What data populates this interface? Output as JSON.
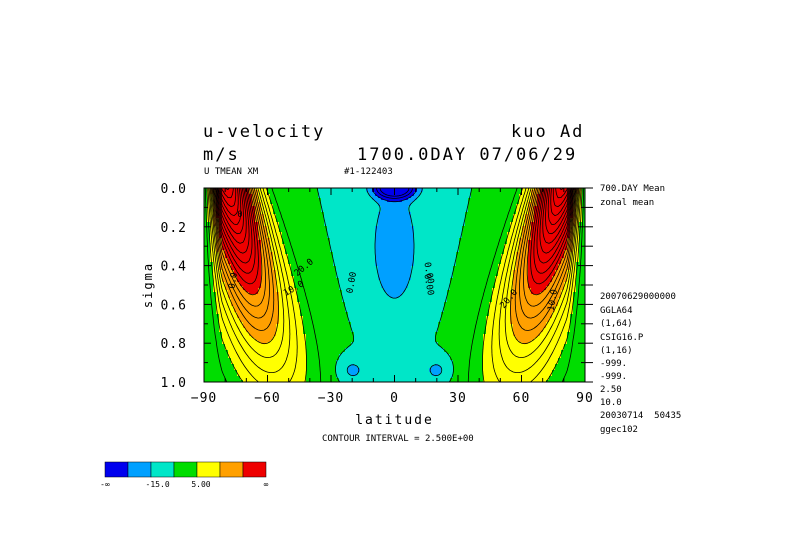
{
  "header": {
    "variable": "u-velocity",
    "units": "m/s",
    "experiment": "kuo Ad",
    "time": "1700.0DAY 07/06/29",
    "var_code": "U TMEAN XM",
    "run_id": "#1-122403"
  },
  "side_info": [
    "700.DAY Mean",
    "zonal mean",
    "20070629000000",
    "GGLA64",
    "(1,64)",
    "CSIG16.P",
    "(1,16)",
    "-999.",
    "-999.",
    "2.50",
    "10.0",
    "20030714  50435",
    "ggec102"
  ],
  "footer": {
    "contour_interval": "CONTOUR INTERVAL = 2.500E+00"
  },
  "colorbar": {
    "colors": [
      "#0000ee",
      "#00a0ff",
      "#00e6c8",
      "#00dd00",
      "#ffff00",
      "#ffa000",
      "#ee0000"
    ],
    "labels": [
      "-∞",
      "-15.0",
      "5.00",
      "∞"
    ]
  },
  "chart_data": {
    "type": "contour",
    "title": "u-velocity",
    "xlabel": "latitude",
    "ylabel": "sigma",
    "xlim": [
      -90,
      90
    ],
    "ylim": [
      1.0,
      0.0
    ],
    "x_ticks": [
      "−90",
      "−60",
      "−30",
      "0",
      "30",
      "60",
      "90"
    ],
    "y_ticks": [
      "0.0",
      "0.2",
      "0.4",
      "0.6",
      "0.8",
      "1.0"
    ],
    "contour_interval": 2.5,
    "contour_labels": [
      {
        "text": "0.0",
        "lat": -75,
        "sigma": 0.48,
        "angle": -80
      },
      {
        "text": "10.0",
        "lat": -47,
        "sigma": 0.53,
        "angle": -30
      },
      {
        "text": "20.0",
        "lat": -42,
        "sigma": 0.42,
        "angle": -40
      },
      {
        "text": "0.00",
        "lat": -19,
        "sigma": 0.49,
        "angle": -80
      },
      {
        "text": "0.00",
        "lat": 15,
        "sigma": 0.5,
        "angle": 80
      },
      {
        "text": "0.00",
        "lat": 15,
        "sigma": 0.44,
        "angle": 80
      },
      {
        "text": "20.0",
        "lat": 55,
        "sigma": 0.58,
        "angle": -50
      },
      {
        "text": "10.0",
        "lat": 76,
        "sigma": 0.58,
        "angle": -80
      },
      {
        "text": "0",
        "lat": -73,
        "sigma": 0.15,
        "angle": 0
      }
    ]
  }
}
